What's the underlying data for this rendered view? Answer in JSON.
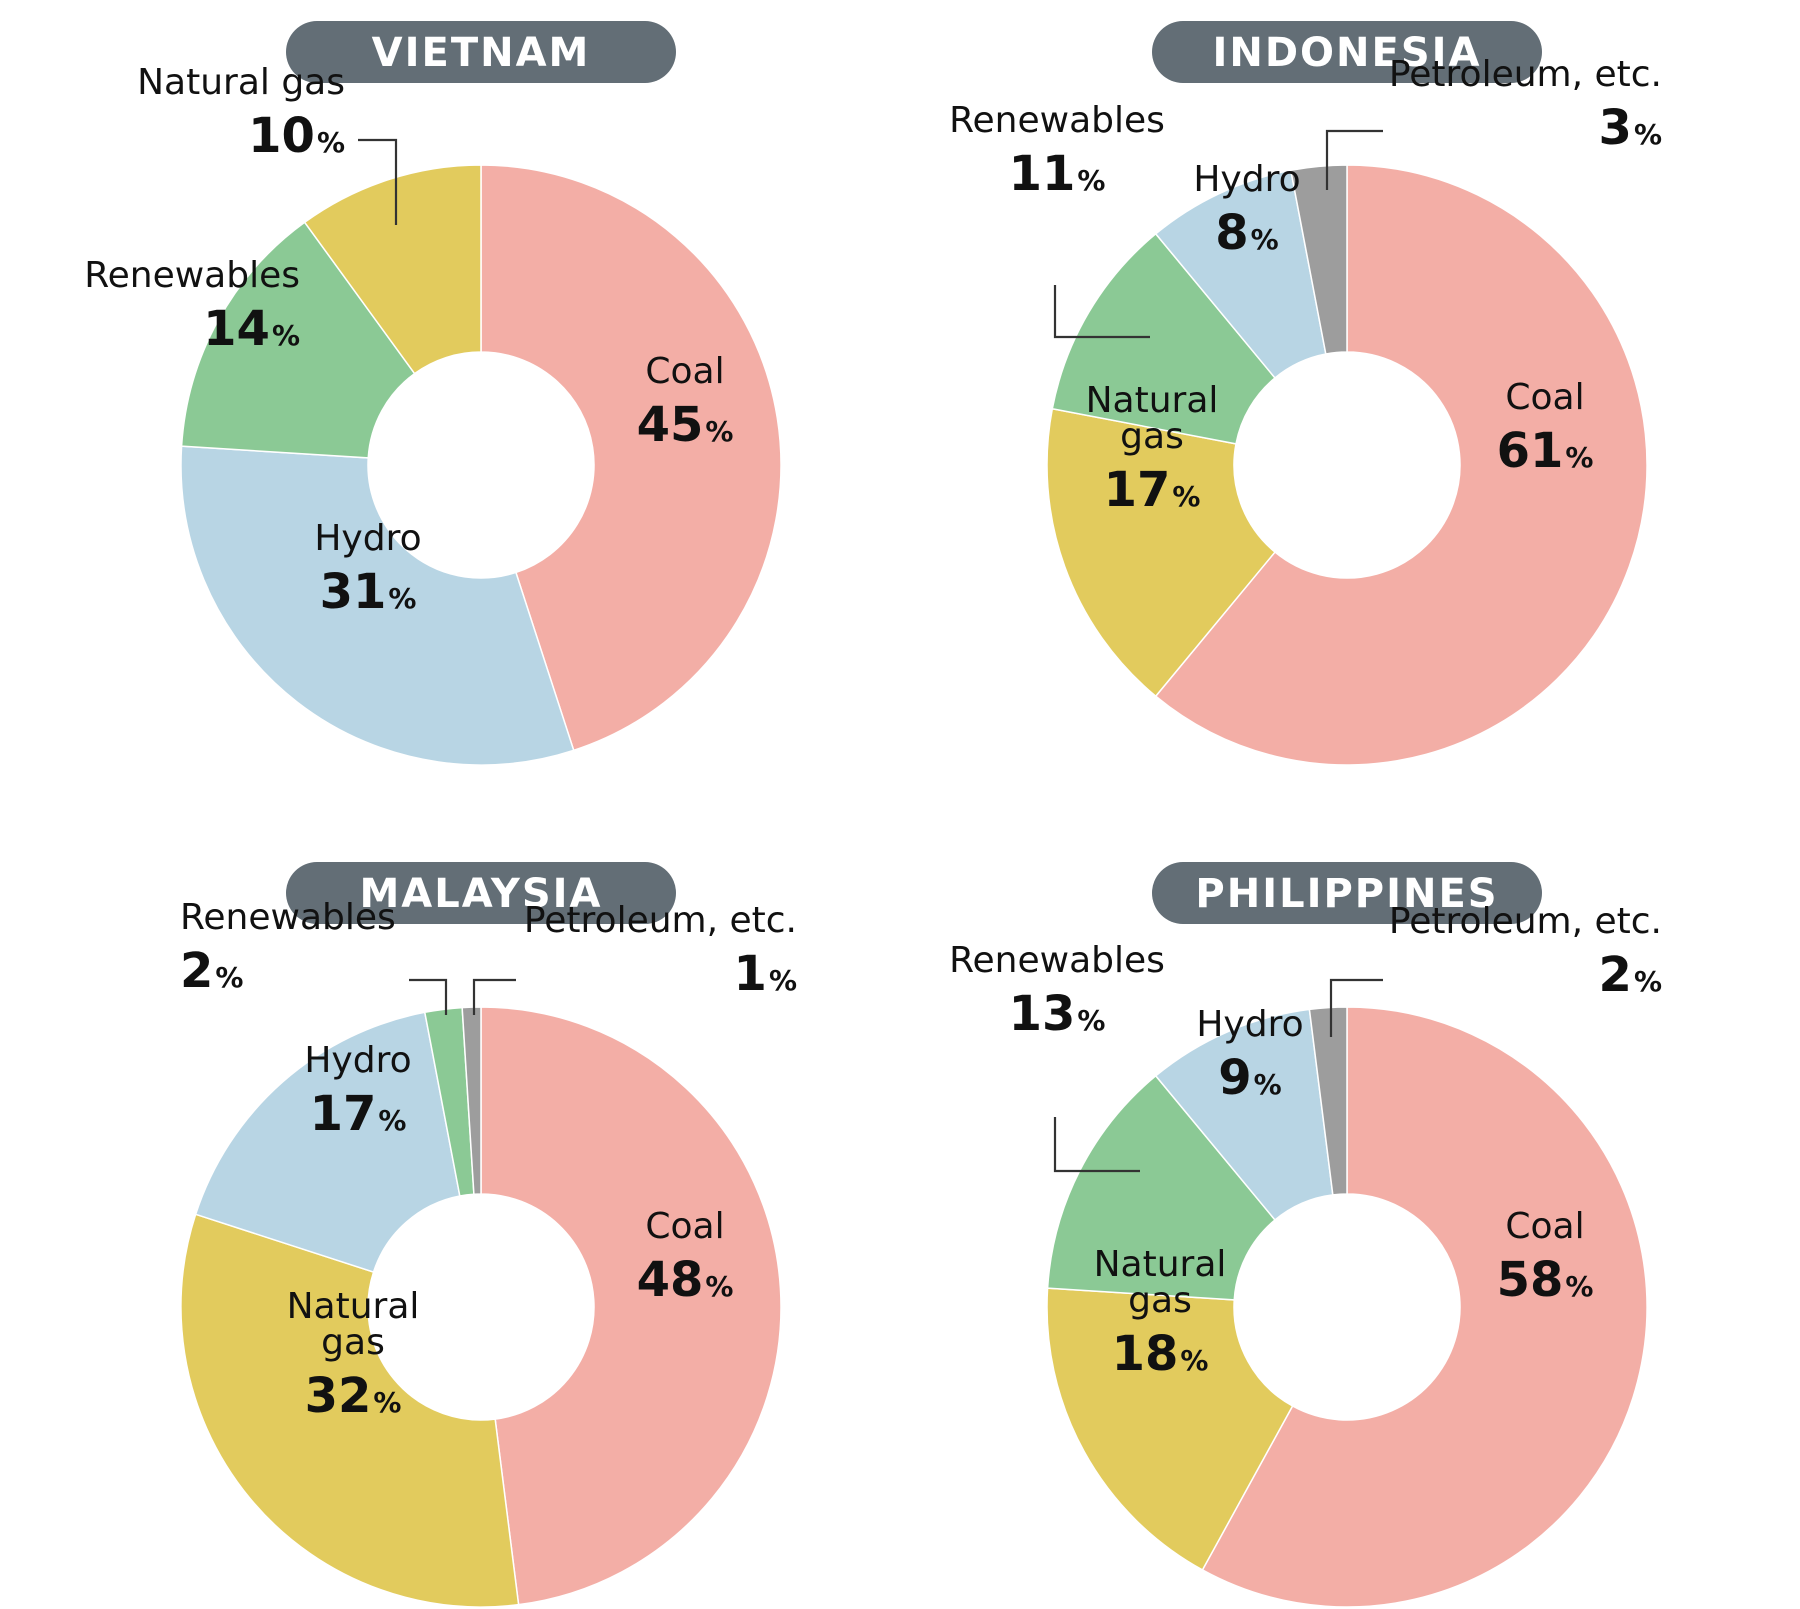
{
  "colors": {
    "Coal": "#f3aea6",
    "Hydro": "#b8d5e4",
    "Renewables": "#8bc995",
    "Natural gas": "#e2cb5d",
    "Petroleum, etc.": "#9d9d9d",
    "title_bg": "#636e76"
  },
  "chart_data": [
    {
      "type": "pie",
      "title": "VIETNAM",
      "unit": "%",
      "slices": [
        {
          "category": "Coal",
          "label_lines": [
            "Coal"
          ],
          "value": 45
        },
        {
          "category": "Hydro",
          "label_lines": [
            "Hydro"
          ],
          "value": 31
        },
        {
          "category": "Renewables",
          "label_lines": [
            "Renewables"
          ],
          "value": 14
        },
        {
          "category": "Natural gas",
          "label_lines": [
            "Natural gas"
          ],
          "value": 10
        }
      ]
    },
    {
      "type": "pie",
      "title": "INDONESIA",
      "unit": "%",
      "slices": [
        {
          "category": "Coal",
          "label_lines": [
            "Coal"
          ],
          "value": 61
        },
        {
          "category": "Natural gas",
          "label_lines": [
            "Natural",
            "gas"
          ],
          "value": 17
        },
        {
          "category": "Renewables",
          "label_lines": [
            "Renewables"
          ],
          "value": 11
        },
        {
          "category": "Hydro",
          "label_lines": [
            "Hydro"
          ],
          "value": 8
        },
        {
          "category": "Petroleum, etc.",
          "label_lines": [
            "Petroleum, etc."
          ],
          "value": 3
        }
      ]
    },
    {
      "type": "pie",
      "title": "MALAYSIA",
      "unit": "%",
      "slices": [
        {
          "category": "Coal",
          "label_lines": [
            "Coal"
          ],
          "value": 48
        },
        {
          "category": "Natural gas",
          "label_lines": [
            "Natural",
            "gas"
          ],
          "value": 32
        },
        {
          "category": "Hydro",
          "label_lines": [
            "Hydro"
          ],
          "value": 17
        },
        {
          "category": "Renewables",
          "label_lines": [
            "Renewables"
          ],
          "value": 2
        },
        {
          "category": "Petroleum, etc.",
          "label_lines": [
            "Petroleum, etc."
          ],
          "value": 1
        }
      ]
    },
    {
      "type": "pie",
      "title": "PHILIPPINES",
      "unit": "%",
      "slices": [
        {
          "category": "Coal",
          "label_lines": [
            "Coal"
          ],
          "value": 58
        },
        {
          "category": "Natural gas",
          "label_lines": [
            "Natural",
            "gas"
          ],
          "value": 18
        },
        {
          "category": "Renewables",
          "label_lines": [
            "Renewables"
          ],
          "value": 13
        },
        {
          "category": "Hydro",
          "label_lines": [
            "Hydro"
          ],
          "value": 9
        },
        {
          "category": "Petroleum, etc.",
          "label_lines": [
            "Petroleum, etc."
          ],
          "value": 2
        }
      ]
    }
  ]
}
